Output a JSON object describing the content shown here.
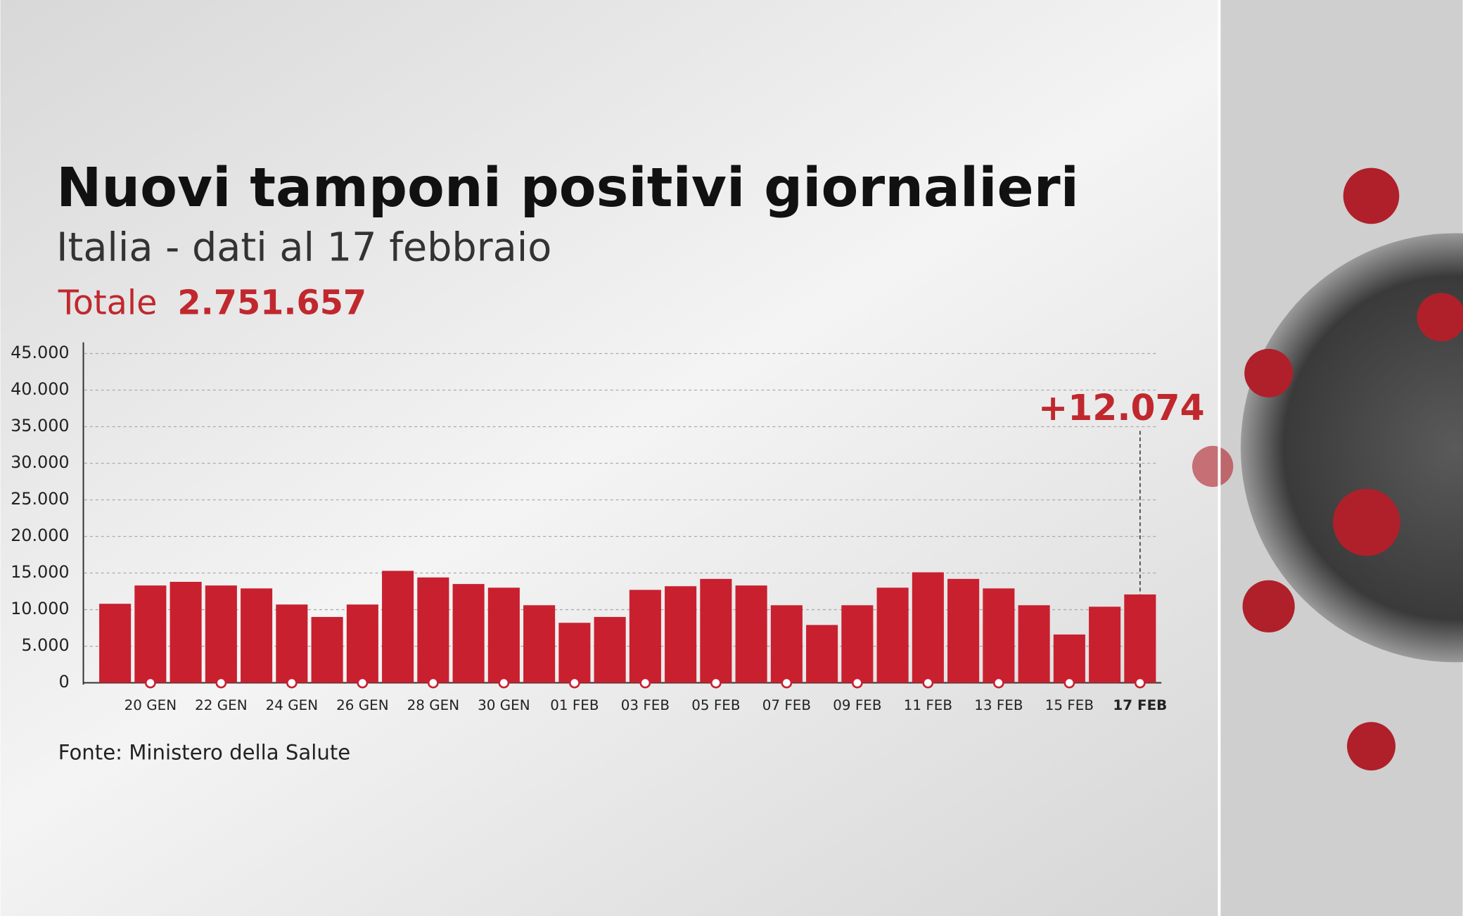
{
  "chart_data": {
    "type": "bar",
    "title": "Nuovi tamponi positivi giornalieri",
    "subtitle": "Italia - dati al 17 febbraio",
    "total_label": "Totale",
    "total_value": "2.751.657",
    "source": "Fonte: Ministero della Salute",
    "categories": [
      null,
      "20 GEN",
      null,
      "22 GEN",
      null,
      "24 GEN",
      null,
      "26 GEN",
      null,
      "28 GEN",
      null,
      "30 GEN",
      null,
      "01 FEB",
      null,
      "03 FEB",
      null,
      "05 FEB",
      null,
      "07 FEB",
      null,
      "09 FEB",
      null,
      "11 FEB",
      null,
      "13 FEB",
      null,
      "15 FEB",
      null,
      "17 FEB"
    ],
    "values": [
      10800,
      13300,
      13800,
      13300,
      12900,
      10700,
      9000,
      10700,
      15300,
      14400,
      13500,
      13000,
      10600,
      8200,
      9000,
      12700,
      13200,
      14200,
      13300,
      10600,
      7900,
      10600,
      13000,
      15100,
      14200,
      12900,
      10600,
      6600,
      10400,
      12074
    ],
    "value_labels": [
      null,
      null,
      null,
      null,
      null,
      null,
      null,
      null,
      null,
      null,
      null,
      null,
      null,
      null,
      null,
      null,
      null,
      null,
      null,
      null,
      null,
      null,
      null,
      null,
      null,
      null,
      null,
      null,
      null,
      "+12.074"
    ],
    "color": "#c8202f",
    "ylim": [
      0,
      45000
    ],
    "yticks": [
      0,
      {
        "value": 5000,
        "label": "5.000"
      },
      {
        "value": 10000,
        "label": "10.000"
      },
      {
        "value": 15000,
        "label": "15.000"
      },
      {
        "value": 20000,
        "label": "20.000"
      },
      {
        "value": 25000,
        "label": "25.000"
      },
      {
        "value": 30000,
        "label": "30.000"
      },
      {
        "value": 35000,
        "label": "35.000"
      },
      {
        "value": 40000,
        "label": "40.000"
      },
      {
        "value": 45000,
        "label": "45.000"
      }
    ],
    "grid": true
  }
}
